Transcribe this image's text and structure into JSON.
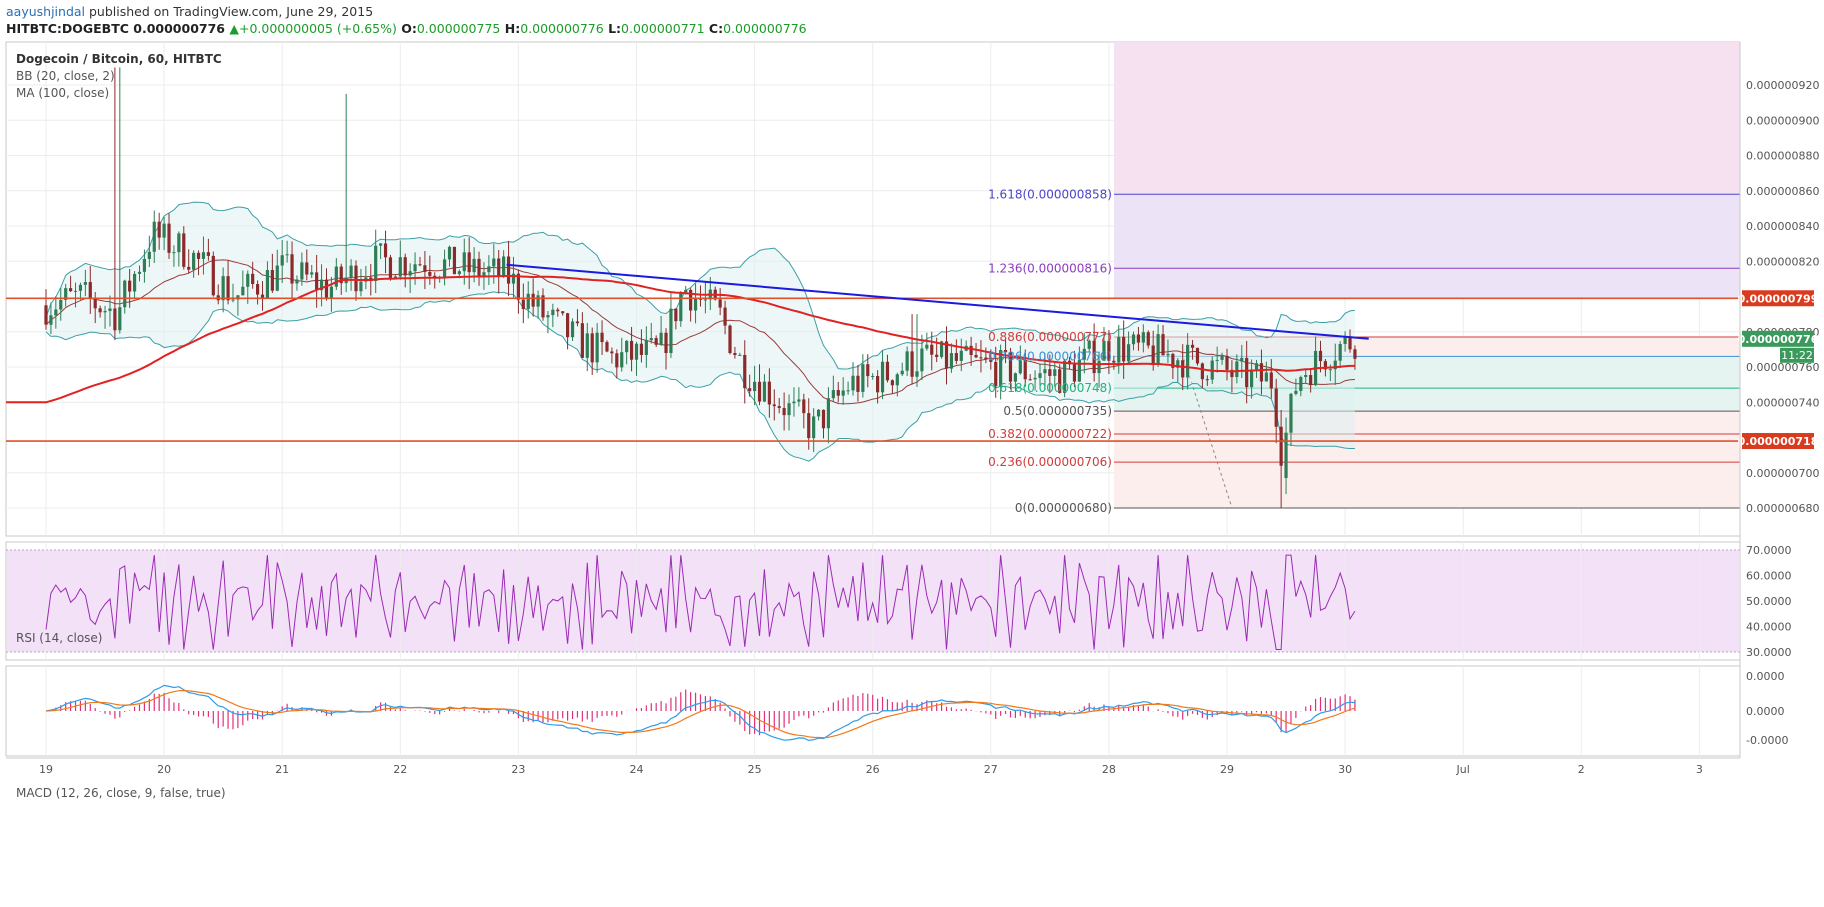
{
  "header": {
    "author": "aayushjindal",
    "published_text": "published on TradingView.com, June 29, 2015",
    "symbol": "HITBTC:DOGEBTC",
    "last": "0.000000776",
    "change": "+0.000000005 (+0.65%)",
    "o_label": "O:",
    "o_value": "0.000000775",
    "h_label": "H:",
    "h_value": "0.000000776",
    "l_label": "L:",
    "l_value": "0.000000771",
    "c_label": "C:",
    "c_value": "0.000000776",
    "up_arrow": "▲"
  },
  "legend": {
    "title": "Dogecoin / Bitcoin, 60, HITBTC",
    "bb": "BB (20, close, 2)",
    "ma": "MA (100, close)",
    "rsi": "RSI (14, close)",
    "macd": "MACD (12, 26, close, 9, false, true)"
  },
  "price_axis": {
    "ticks": [
      "0.000000920",
      "0.000000900",
      "0.000000880",
      "0.000000860",
      "0.000000840",
      "0.000000820",
      "0.000000780",
      "0.000000760",
      "0.000000740",
      "0.000000700",
      "0.000000680"
    ],
    "tick_values": [
      9.2e-07,
      9e-07,
      8.8e-07,
      8.6e-07,
      8.4e-07,
      8.2e-07,
      7.8e-07,
      7.6e-07,
      7.4e-07,
      7e-07,
      6.8e-07
    ],
    "badge_resistance": "0.000000799",
    "badge_support": "0.000000718",
    "badge_last": "0.000000776",
    "badge_countdown": "11:22"
  },
  "rsi_axis": {
    "ticks": [
      "70.0000",
      "60.0000",
      "50.0000",
      "40.0000",
      "30.0000"
    ]
  },
  "macd_axis": {
    "ticks": [
      "0.0000",
      "0.0000",
      "-0.0000"
    ]
  },
  "x_axis": {
    "ticks": [
      "19",
      "20",
      "21",
      "22",
      "23",
      "24",
      "25",
      "26",
      "27",
      "28",
      "29",
      "30",
      "Jul",
      "2",
      "3"
    ]
  },
  "fib_levels": [
    {
      "label": "1.618(0.000000858)",
      "value": 8.58e-07,
      "color": "#4b45c9"
    },
    {
      "label": "1.236(0.000000816)",
      "value": 8.16e-07,
      "color": "#8a3cc7"
    },
    {
      "label": "0.886(0.000000777)",
      "value": 7.77e-07,
      "color": "#d13b3b"
    },
    {
      "label": "0.786(0.000000766)",
      "value": 7.66e-07,
      "color": "#3c8fd6"
    },
    {
      "label": "0.618(0.000000748)",
      "value": 7.48e-07,
      "color": "#20b37c"
    },
    {
      "label": "0.5(0.000000735)",
      "value": 7.35e-07,
      "color": "#555555"
    },
    {
      "label": "0.382(0.000000722)",
      "value": 7.22e-07,
      "color": "#d13b3b"
    },
    {
      "label": "0.236(0.000000706)",
      "value": 7.06e-07,
      "color": "#d13b3b"
    },
    {
      "label": "0(0.000000680)",
      "value": 6.8e-07,
      "color": "#555555"
    }
  ],
  "colors": {
    "up": "#2f7d56",
    "down": "#8b2a2a",
    "ma": "#e02222",
    "bb": "#3aa0a6",
    "trend": "#1a1ae0",
    "hline": "#e0502a",
    "rsi": "#9b2bb5",
    "macd": "#2f9bea",
    "signal": "#f07a1a"
  },
  "chart_data": {
    "type": "candlestick",
    "series": [
      {
        "name": "Dogecoin / Bitcoin, 60, HITBTC",
        "values": []
      },
      {
        "name": "BB (20, close, 2)",
        "values": []
      },
      {
        "name": "MA (100, close)",
        "values": []
      },
      {
        "name": "RSI (14, close)",
        "values": []
      },
      {
        "name": "MACD (12, 26, close, 9, false, true)",
        "values": []
      }
    ],
    "x_categories": [
      "19",
      "20",
      "21",
      "22",
      "23",
      "24",
      "25",
      "26",
      "27",
      "28",
      "29",
      "30",
      "Jul",
      "2",
      "3"
    ],
    "ylim": [
      6.65e-07,
      9.35e-07
    ],
    "horizontal_levels": [
      7.99e-07,
      7.18e-07
    ],
    "trendline": [
      {
        "x": "22.9",
        "y": 8.18e-07
      },
      {
        "x": "30.2",
        "y": 7.76e-07
      }
    ],
    "rsi_ylim": [
      30,
      70
    ],
    "grid": true
  }
}
